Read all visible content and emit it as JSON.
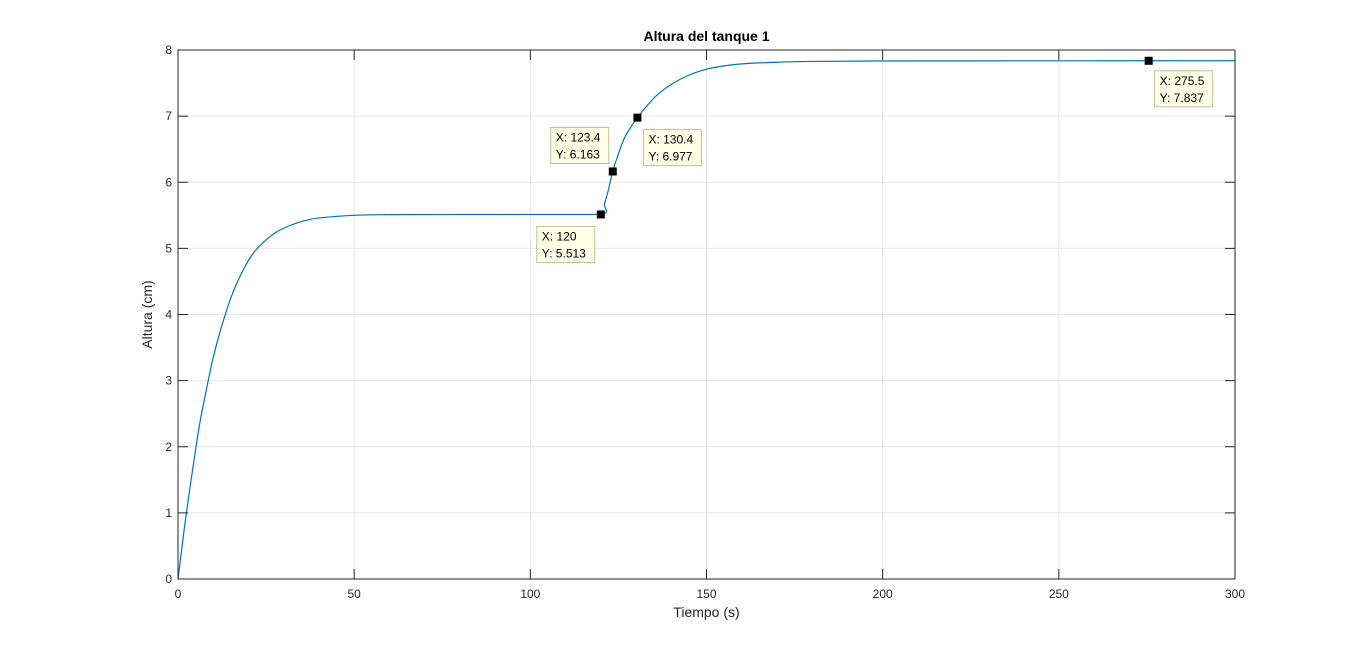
{
  "chart_data": {
    "type": "line",
    "title": "Altura del tanque 1",
    "xlabel": "Tiempo (s)",
    "ylabel": "Altura (cm)",
    "xlim": [
      0,
      300
    ],
    "ylim": [
      0,
      8
    ],
    "xticks": [
      0,
      50,
      100,
      150,
      200,
      250,
      300
    ],
    "yticks": [
      0,
      1,
      2,
      3,
      4,
      5,
      6,
      7,
      8
    ],
    "grid": true,
    "series": [
      {
        "color": "#0072BD",
        "x": [
          0,
          2,
          4,
          6,
          8,
          10,
          12,
          15,
          18,
          21,
          24,
          28,
          32,
          36,
          40,
          50,
          60,
          80,
          100,
          120,
          121,
          122,
          123.4,
          125,
          127,
          130.4,
          133,
          136,
          140,
          145,
          150,
          155,
          160,
          170,
          180,
          200,
          230,
          275.5,
          300
        ],
        "y": [
          0,
          0.85,
          1.6,
          2.3,
          2.85,
          3.35,
          3.75,
          4.25,
          4.62,
          4.9,
          5.08,
          5.25,
          5.35,
          5.42,
          5.46,
          5.5,
          5.51,
          5.512,
          5.513,
          5.513,
          5.67,
          5.85,
          6.163,
          6.43,
          6.7,
          6.977,
          7.15,
          7.32,
          7.48,
          7.62,
          7.71,
          7.76,
          7.79,
          7.815,
          7.827,
          7.834,
          7.836,
          7.837,
          7.837
        ]
      }
    ],
    "datatips": [
      {
        "x": 120,
        "y": 5.513,
        "label_x": "X: 120",
        "label_y": "Y: 5.513"
      },
      {
        "x": 123.4,
        "y": 6.163,
        "label_x": "X: 123.4",
        "label_y": "Y: 6.163"
      },
      {
        "x": 130.4,
        "y": 6.977,
        "label_x": "X: 130.4",
        "label_y": "Y: 6.977"
      },
      {
        "x": 275.5,
        "y": 7.837,
        "label_x": "X: 275.5",
        "label_y": "Y: 7.837"
      }
    ]
  },
  "colors": {
    "line": "#0072BD",
    "grid": "#e6e6e6",
    "axes": "#262626",
    "datatip_bg": "#ffffe6",
    "datatip_border": "#bfbf9f"
  }
}
